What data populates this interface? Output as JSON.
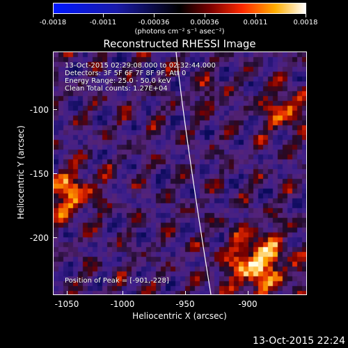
{
  "colorbar": {
    "ticks": [
      "-0.0018",
      "-0.0011",
      "-0.00036",
      "0.00036",
      "0.0011",
      "0.0018"
    ],
    "units_text": "(photons cm⁻² s⁻¹ asec⁻²)"
  },
  "plot": {
    "title": "Reconstructed RHESSI Image",
    "info_lines": [
      "13-Oct-2015 02:29:08.000 to 02:32:44.000",
      "Detectors: 3F 5F 6F 7F 8F 9F, Att 0",
      "Energy Range: 25.0 - 50.0 keV",
      "Clean     Total counts: 1.27E+04"
    ],
    "peak_text": "Position of Peak = [-901,-228]"
  },
  "axes": {
    "xlabel": "Heliocentric X (arcsec)",
    "ylabel": "Heliocentric Y (arcsec)",
    "xticks": [
      "-1050",
      "-1000",
      "-950",
      "-900"
    ],
    "yticks": [
      "-100",
      "-150",
      "-200"
    ]
  },
  "footer": {
    "datestamp": "13-Oct-2015 22:24"
  }
}
